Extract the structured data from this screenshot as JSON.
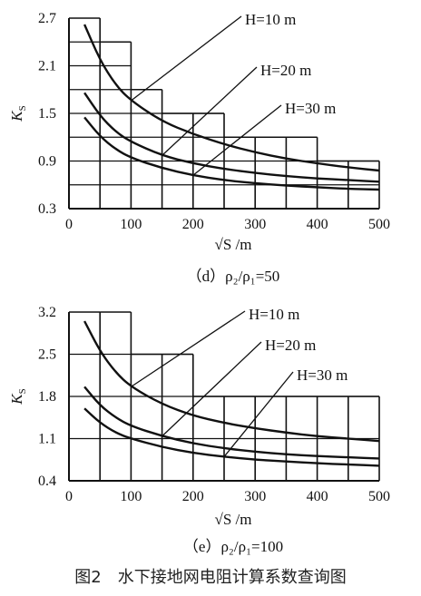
{
  "figure_caption": "图2　水下接地网电阻计算系数查询图",
  "chart_data": [
    {
      "type": "line",
      "caption": "（d）ρ₂/ρ₁=50",
      "xlabel": "√S /m",
      "ylabel": "Ks",
      "xticks": [
        0,
        100,
        200,
        300,
        400,
        500
      ],
      "yticks": [
        0.3,
        0.9,
        1.5,
        2.1,
        2.7
      ],
      "xlim": [
        0,
        500
      ],
      "ylim": [
        0.3,
        2.7
      ],
      "grid_columns": [
        {
          "x0": 0,
          "x1": 50,
          "top": 2.7
        },
        {
          "x0": 50,
          "x1": 100,
          "top": 2.4
        },
        {
          "x0": 100,
          "x1": 150,
          "top": 1.8
        },
        {
          "x0": 150,
          "x1": 200,
          "top": 1.5
        },
        {
          "x0": 200,
          "x1": 250,
          "top": 1.5
        },
        {
          "x0": 250,
          "x1": 300,
          "top": 1.2
        },
        {
          "x0": 300,
          "x1": 350,
          "top": 1.2
        },
        {
          "x0": 350,
          "x1": 400,
          "top": 1.2
        },
        {
          "x0": 400,
          "x1": 450,
          "top": 0.9
        },
        {
          "x0": 450,
          "x1": 500,
          "top": 0.9
        }
      ],
      "grid_rows": [
        0.6,
        0.9,
        1.2,
        1.5,
        1.8,
        2.1,
        2.4
      ],
      "series": [
        {
          "name": "H=10 m",
          "x": [
            25,
            50,
            75,
            100,
            150,
            200,
            250,
            300,
            350,
            400,
            450,
            500
          ],
          "y": [
            2.62,
            2.17,
            1.86,
            1.66,
            1.4,
            1.24,
            1.11,
            1.01,
            0.93,
            0.87,
            0.82,
            0.78
          ]
        },
        {
          "name": "H=20 m",
          "x": [
            25,
            50,
            75,
            100,
            150,
            200,
            250,
            300,
            350,
            400,
            450,
            500
          ],
          "y": [
            1.76,
            1.47,
            1.27,
            1.14,
            0.97,
            0.87,
            0.8,
            0.75,
            0.71,
            0.68,
            0.66,
            0.64
          ]
        },
        {
          "name": "H=30 m",
          "x": [
            25,
            50,
            75,
            100,
            150,
            200,
            250,
            300,
            350,
            400,
            450,
            500
          ],
          "y": [
            1.45,
            1.21,
            1.05,
            0.94,
            0.81,
            0.72,
            0.66,
            0.62,
            0.59,
            0.57,
            0.55,
            0.54
          ]
        }
      ]
    },
    {
      "type": "line",
      "caption": "（e）ρ₂/ρ₁=100",
      "xlabel": "√S /m",
      "ylabel": "Ks",
      "xticks": [
        0,
        100,
        200,
        300,
        400,
        500
      ],
      "yticks": [
        0.4,
        1.1,
        1.8,
        2.5,
        3.2
      ],
      "xlim": [
        0,
        500
      ],
      "ylim": [
        0.4,
        3.2
      ],
      "grid_columns": [
        {
          "x0": 0,
          "x1": 50,
          "top": 3.2
        },
        {
          "x0": 50,
          "x1": 100,
          "top": 3.2
        },
        {
          "x0": 100,
          "x1": 150,
          "top": 2.5
        },
        {
          "x0": 150,
          "x1": 200,
          "top": 2.5
        },
        {
          "x0": 200,
          "x1": 250,
          "top": 1.8
        },
        {
          "x0": 250,
          "x1": 300,
          "top": 1.8
        },
        {
          "x0": 300,
          "x1": 350,
          "top": 1.8
        },
        {
          "x0": 350,
          "x1": 400,
          "top": 1.8
        },
        {
          "x0": 400,
          "x1": 450,
          "top": 1.8
        },
        {
          "x0": 450,
          "x1": 500,
          "top": 1.8
        }
      ],
      "grid_rows": [
        1.1,
        1.8,
        2.5
      ],
      "series": [
        {
          "name": "H=10 m",
          "x": [
            25,
            50,
            75,
            100,
            150,
            200,
            250,
            300,
            350,
            400,
            450,
            500
          ],
          "y": [
            3.05,
            2.55,
            2.2,
            1.96,
            1.67,
            1.48,
            1.36,
            1.27,
            1.2,
            1.14,
            1.1,
            1.06
          ]
        },
        {
          "name": "H=20 m",
          "x": [
            25,
            50,
            75,
            100,
            150,
            200,
            250,
            300,
            350,
            400,
            450,
            500
          ],
          "y": [
            1.96,
            1.65,
            1.45,
            1.31,
            1.14,
            1.02,
            0.94,
            0.88,
            0.84,
            0.81,
            0.79,
            0.77
          ]
        },
        {
          "name": "H=30 m",
          "x": [
            25,
            50,
            75,
            100,
            150,
            200,
            250,
            300,
            350,
            400,
            450,
            500
          ],
          "y": [
            1.6,
            1.36,
            1.2,
            1.1,
            0.96,
            0.86,
            0.8,
            0.75,
            0.72,
            0.69,
            0.67,
            0.65
          ]
        }
      ]
    }
  ]
}
